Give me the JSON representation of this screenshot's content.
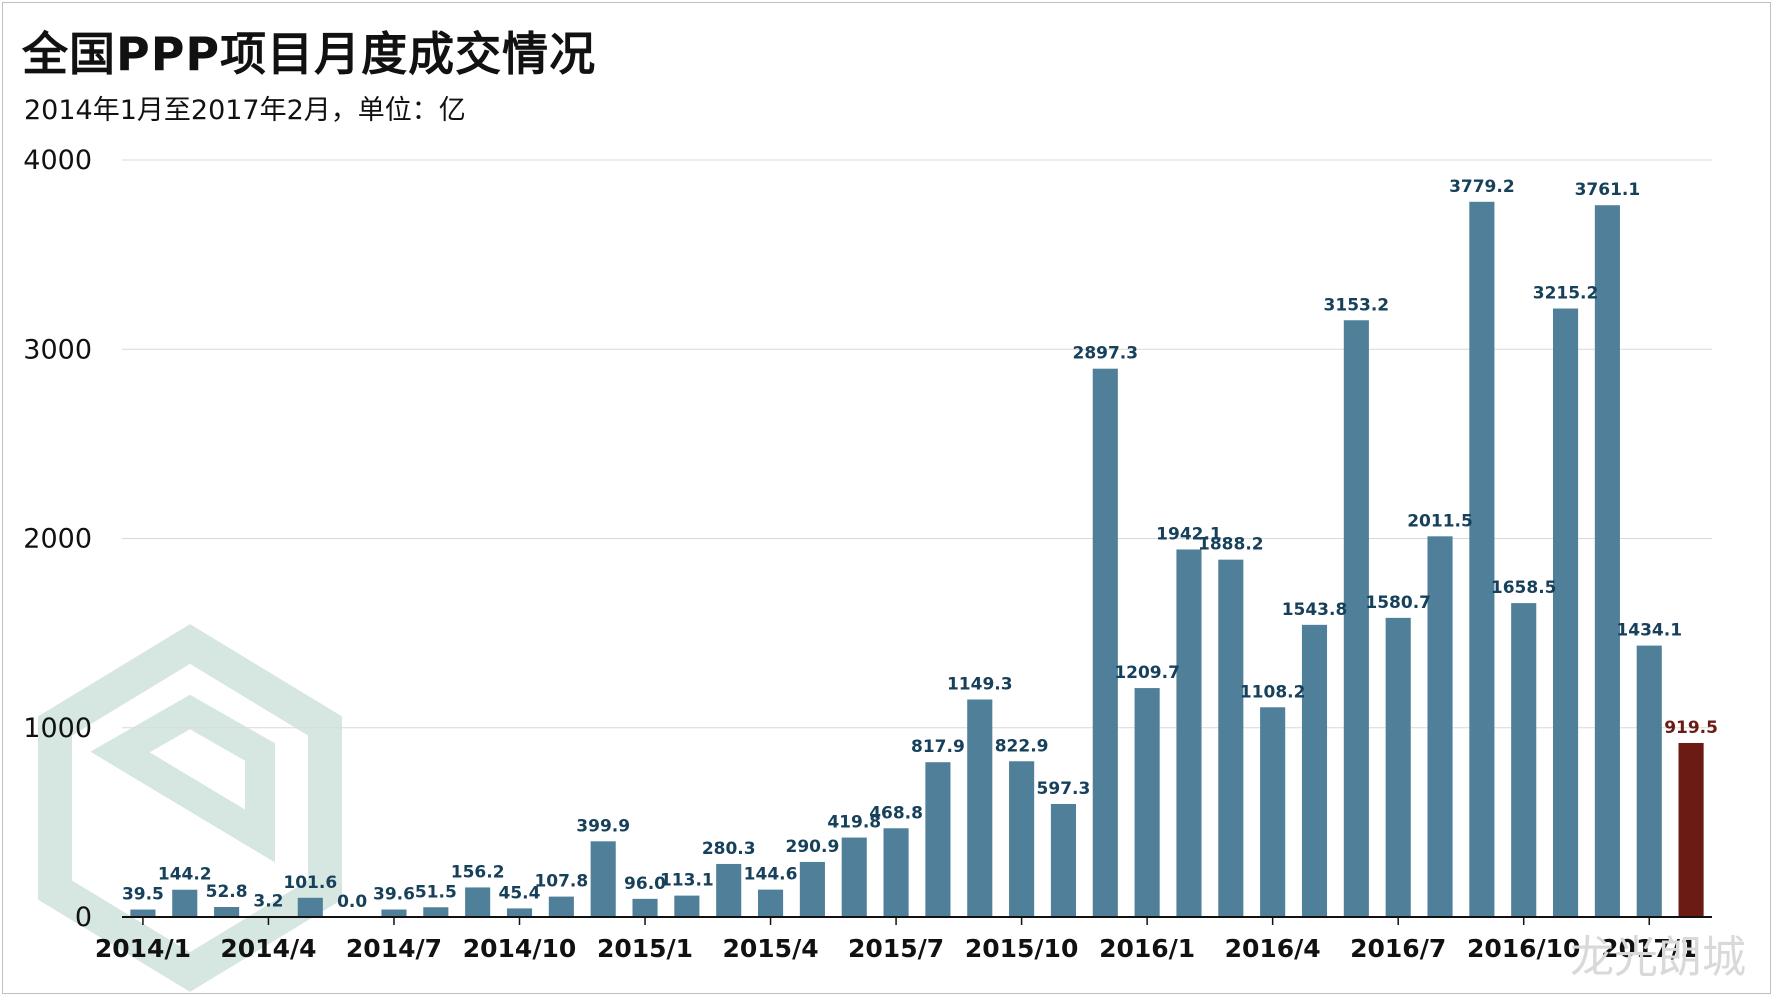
{
  "header": {
    "title": "全国PPP项目月度成交情况",
    "subtitle": "2014年1月至2017年2月，单位：亿"
  },
  "watermark": {
    "text": "龙光朗城"
  },
  "colors": {
    "bar": "#4f7f99",
    "highlight": "#6b1a14",
    "label": "#17405a",
    "highlight_label": "#6b1a14",
    "grid": "#d9d9d9",
    "watermark": "#cfe3dc"
  },
  "chart_data": {
    "type": "bar",
    "title": "全国PPP项目月度成交情况",
    "subtitle": "2014年1月至2017年2月，单位：亿",
    "categories": [
      "2014/1",
      "2014/2",
      "2014/3",
      "2014/4",
      "2014/5",
      "2014/6",
      "2014/7",
      "2014/8",
      "2014/9",
      "2014/10",
      "2014/11",
      "2014/12",
      "2015/1",
      "2015/2",
      "2015/3",
      "2015/4",
      "2015/5",
      "2015/6",
      "2015/7",
      "2015/8",
      "2015/9",
      "2015/10",
      "2015/11",
      "2015/12",
      "2016/1",
      "2016/2",
      "2016/3",
      "2016/4",
      "2016/5",
      "2016/6",
      "2016/7",
      "2016/8",
      "2016/9",
      "2016/10",
      "2016/11",
      "2016/12",
      "2017/1",
      "2017/2"
    ],
    "values": [
      39.5,
      144.2,
      52.8,
      3.2,
      101.6,
      0.0,
      39.6,
      51.5,
      156.2,
      45.4,
      107.8,
      399.9,
      96.0,
      113.1,
      280.3,
      144.6,
      290.9,
      419.8,
      468.8,
      817.9,
      1149.3,
      822.9,
      597.3,
      2897.3,
      1209.7,
      1942.1,
      1888.2,
      1108.2,
      1543.8,
      3153.2,
      1580.7,
      2011.5,
      3779.2,
      1658.5,
      3215.2,
      3761.1,
      1434.1,
      919.5
    ],
    "labels": [
      "39.5",
      "144.2",
      "52.8",
      "3.2",
      "101.6",
      "0.0",
      "39.6",
      "51.5",
      "156.2",
      "45.4",
      "107.8",
      "399.9",
      "96.0",
      "113.1",
      "280.3",
      "144.6",
      "290.9",
      "419.8",
      "468.8",
      "817.9",
      "1149.3",
      "822.9",
      "597.3",
      "2897.3",
      "1209.7",
      "1942.1",
      "1888.2",
      "1108.2",
      "1543.8",
      "3153.2",
      "1580.7",
      "2011.5",
      "3779.2",
      "1658.5",
      "3215.2",
      "3761.1",
      "1434.1",
      "919.5"
    ],
    "x_tick_labels": [
      "2014/1",
      "2014/4",
      "2014/7",
      "2014/10",
      "2015/1",
      "2015/4",
      "2015/7",
      "2015/10",
      "2016/1",
      "2016/4",
      "2016/7",
      "2016/10",
      "2017/1"
    ],
    "y_ticks": [
      "0",
      "1000",
      "2000",
      "3000",
      "4000"
    ],
    "ylim": [
      0,
      4000
    ],
    "highlight_index": 37,
    "grid": true,
    "xlabel": "",
    "ylabel": ""
  }
}
